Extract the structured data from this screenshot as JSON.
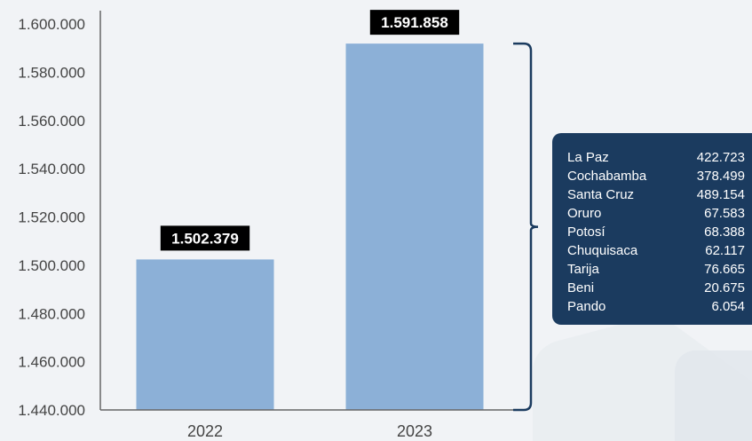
{
  "colors": {
    "bar": "#8cb0d7",
    "label_bg": "#000000",
    "panel_bg": "#1b3b5f",
    "bracket": "#1b3b5f",
    "axis": "#666666"
  },
  "chart_data": {
    "type": "bar",
    "categories": [
      "2022",
      "2023"
    ],
    "values": [
      1502379,
      1591858
    ],
    "data_labels": [
      "1.502.379",
      "1.591.858"
    ],
    "ylim": [
      1440000,
      1600000
    ],
    "y_ticks": [
      1440000,
      1460000,
      1480000,
      1500000,
      1520000,
      1540000,
      1560000,
      1580000,
      1600000
    ],
    "y_tick_labels": [
      "1.440.000",
      "1.460.000",
      "1.480.000",
      "1.500.000",
      "1.520.000",
      "1.540.000",
      "1.560.000",
      "1.580.000",
      "1.600.000"
    ],
    "grid": false,
    "legend": "none",
    "title": "",
    "xlabel": "",
    "ylabel": ""
  },
  "breakdown": {
    "items": [
      {
        "name": "La Paz",
        "value": "422.723"
      },
      {
        "name": "Cochabamba",
        "value": "378.499"
      },
      {
        "name": "Santa Cruz",
        "value": "489.154"
      },
      {
        "name": "Oruro",
        "value": "67.583"
      },
      {
        "name": "Potosí",
        "value": "68.388"
      },
      {
        "name": "Chuquisaca",
        "value": "62.117"
      },
      {
        "name": "Tarija",
        "value": "76.665"
      },
      {
        "name": "Beni",
        "value": "20.675"
      },
      {
        "name": "Pando",
        "value": "6.054"
      }
    ]
  }
}
